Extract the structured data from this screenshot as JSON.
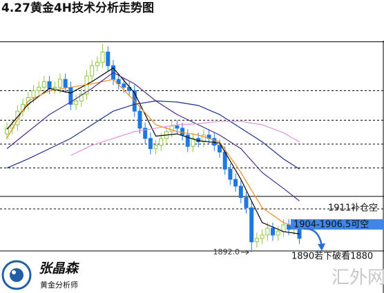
{
  "chart_data": {
    "type": "candlestick",
    "title": "4.27黄金4H技术分析走势图",
    "ylim": [
      1874,
      1985
    ],
    "up_color": "#8cc63f",
    "down_color": "#1f78e0",
    "open": [
      1944,
      1946.5,
      1948,
      1954,
      1957,
      1960,
      1963,
      1964.5,
      1967,
      1964,
      1964.5,
      1968,
      1964.5,
      1957,
      1958.5,
      1961.5,
      1969.5,
      1974,
      1975.5,
      1980,
      1974,
      1968,
      1966,
      1964.5,
      1963,
      1954,
      1946.5,
      1942,
      1937.5,
      1939,
      1942,
      1945,
      1947.5,
      1946.5,
      1943.5,
      1938.5,
      1942,
      1940.5,
      1943.5,
      1942,
      1939,
      1936,
      1928.5,
      1924,
      1921,
      1916,
      1911.5,
      1896.5,
      1898,
      1899.5,
      1902.5,
      1899.5,
      1901,
      1904,
      1902,
      1902.5
    ],
    "high": [
      1949,
      1950.5,
      1956.5,
      1959.5,
      1962.5,
      1965.5,
      1967,
      1969.5,
      1969.5,
      1967,
      1970.5,
      1970.5,
      1967,
      1961,
      1964,
      1972,
      1976.5,
      1978,
      1983.5,
      1982.5,
      1976.5,
      1970.5,
      1968.5,
      1967,
      1965.5,
      1956.5,
      1949,
      1944.5,
      1941.5,
      1944.5,
      1947.5,
      1950,
      1950,
      1949,
      1946,
      1944.5,
      1944.5,
      1946,
      1946,
      1944.5,
      1941.5,
      1938.5,
      1931,
      1926.5,
      1923.5,
      1918.5,
      1914,
      1900.5,
      1902,
      1905,
      1905,
      1903.5,
      1906.5,
      1906.5,
      1905,
      1905
    ],
    "low": [
      1941.5,
      1944,
      1945.5,
      1951.5,
      1954.5,
      1957.5,
      1960.5,
      1962,
      1961.5,
      1961.5,
      1962,
      1962,
      1954.5,
      1954.5,
      1956,
      1959,
      1967,
      1971.5,
      1973,
      1971.5,
      1965.5,
      1963.5,
      1962,
      1960.5,
      1951.5,
      1944,
      1939.5,
      1935,
      1935,
      1936.5,
      1939.5,
      1942.5,
      1944,
      1941,
      1936,
      1936,
      1938,
      1938,
      1939.5,
      1936.5,
      1933.5,
      1926,
      1921.5,
      1918.5,
      1913.5,
      1909,
      1892,
      1894,
      1895.5,
      1897,
      1897,
      1897,
      1898.5,
      1899.5,
      1899.5,
      1895.5
    ],
    "close": [
      1946.5,
      1948,
      1954,
      1957,
      1960,
      1963,
      1964.5,
      1967,
      1964,
      1964.5,
      1968,
      1964.5,
      1957,
      1958.5,
      1961.5,
      1969.5,
      1974,
      1975.5,
      1980,
      1974,
      1968,
      1966,
      1964.5,
      1963,
      1954,
      1946.5,
      1942,
      1937.5,
      1939,
      1942,
      1945,
      1947.5,
      1946.5,
      1943.5,
      1938.5,
      1942,
      1940.5,
      1943.5,
      1942,
      1939,
      1936,
      1928.5,
      1924,
      1921,
      1916,
      1911.5,
      1896.5,
      1898,
      1899.5,
      1902.5,
      1899.5,
      1901,
      1904,
      1902,
      1902.5,
      1898
    ],
    "series": [
      {
        "color": "#000000",
        "x": [
          0,
          4,
          8,
          12,
          16,
          20,
          24,
          28,
          32,
          36,
          40,
          44,
          48,
          52,
          55
        ],
        "values": [
          1946,
          1957,
          1964,
          1962,
          1967,
          1973,
          1962,
          1943,
          1944,
          1941,
          1940,
          1924,
          1905,
          1901,
          1900
        ]
      },
      {
        "color": "#f08a24",
        "x": [
          0,
          4,
          8,
          12,
          16,
          20,
          24,
          28,
          32,
          36,
          40,
          44,
          48,
          52,
          55
        ],
        "values": [
          1942,
          1958.5,
          1963,
          1964.5,
          1966,
          1968,
          1958.5,
          1948,
          1945,
          1943.5,
          1940.5,
          1927,
          1911.5,
          1905,
          1902.5
        ]
      },
      {
        "color": "#4b2a8c",
        "x": [
          0,
          4,
          8,
          12,
          16,
          20,
          24,
          28,
          32,
          36,
          40,
          44,
          48,
          52,
          55
        ],
        "values": [
          1937.5,
          1945,
          1952.5,
          1958,
          1964,
          1971,
          1966,
          1958.5,
          1952.5,
          1948,
          1943.5,
          1937.5,
          1927,
          1920,
          1914.5
        ]
      },
      {
        "color": "#1a2f8a",
        "x": [
          0,
          4,
          8,
          12,
          16,
          20,
          24,
          28,
          32,
          36,
          40,
          44,
          48,
          52,
          55
        ],
        "values": [
          1929,
          1933,
          1937.5,
          1942,
          1948,
          1954,
          1957,
          1958.5,
          1958,
          1956.5,
          1952.5,
          1946.5,
          1940.5,
          1933,
          1928.5
        ]
      },
      {
        "color": "#e58ee0",
        "x": [
          12,
          16,
          20,
          24,
          28,
          32,
          36,
          40,
          44,
          48,
          52,
          55
        ],
        "values": [
          1934.5,
          1939,
          1942,
          1945,
          1946.5,
          1948,
          1948.5,
          1949.5,
          1949.5,
          1948,
          1944.5,
          1940.5
        ]
      }
    ],
    "dashed_levels": [
      1963,
      1950,
      1939.5,
      1929,
      1911
    ],
    "solid_levels": [
      1984.5,
      1916.5,
      1892.5
    ],
    "annotations": [
      "1911补仓空",
      "1904-1906.5可空",
      "1892.0",
      "1890若下破看1880"
    ]
  },
  "logo": {
    "brand": "张晶森",
    "role": "黄金分析师"
  },
  "watermark": "汇外网"
}
